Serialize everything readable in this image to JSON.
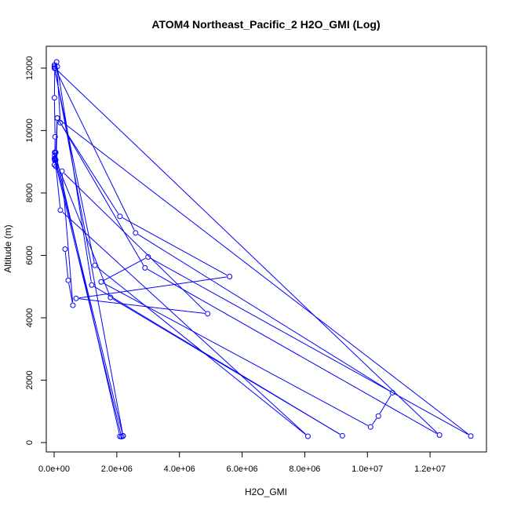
{
  "chart_data": {
    "type": "line",
    "title": "ATOM4 Northeast_Pacific_2 H2O_GMI (Log)",
    "xlabel": "H2O_GMI",
    "ylabel": "Altitude (m)",
    "xlim": [
      -250000,
      13800000
    ],
    "ylim": [
      -300,
      12700
    ],
    "x_ticks": [
      0,
      2000000,
      4000000,
      6000000,
      8000000,
      10000000,
      12000000
    ],
    "x_tick_labels": [
      "0.0e+00",
      "2.0e+06",
      "4.0e+06",
      "6.0e+06",
      "8.0e+06",
      "1.0e+07",
      "1.2e+07"
    ],
    "y_ticks": [
      0,
      2000,
      4000,
      6000,
      8000,
      10000,
      12000
    ],
    "y_tick_labels": [
      "0",
      "2000",
      "4000",
      "6000",
      "8000",
      "10000",
      "12000"
    ],
    "grid": false,
    "series": [
      {
        "color": "#0000ff",
        "x": [
          20000,
          10000,
          30000,
          20000,
          20000,
          50000,
          100000,
          60000,
          30000,
          40000,
          2100000,
          2200000,
          10000,
          10000,
          100000,
          1200000,
          9200000,
          1800000,
          50000,
          2200000,
          2150000,
          10000,
          20000,
          10000,
          20000,
          200000,
          8100000,
          1300000,
          10000,
          80000,
          200000,
          2900000,
          12300000,
          30000,
          2600000,
          10800000,
          10350000,
          10100000,
          1500000,
          3000000,
          13300000,
          100000,
          2100000,
          5600000,
          700000,
          4900000,
          250000,
          600000,
          450000,
          350000
        ],
        "y": [
          12000,
          11050,
          9800,
          9100,
          9050,
          9300,
          10400,
          8850,
          9100,
          9300,
          200,
          220,
          12050,
          12100,
          12050,
          5050,
          220,
          4650,
          9050,
          210,
          190,
          9100,
          9300,
          8900,
          9200,
          7450,
          200,
          5680,
          12000,
          12200,
          10250,
          5600,
          240,
          12000,
          6720,
          1600,
          850,
          500,
          5150,
          5950,
          210,
          10400,
          7250,
          5320,
          4620,
          4130,
          8700,
          4400,
          5200,
          6200
        ]
      }
    ]
  }
}
